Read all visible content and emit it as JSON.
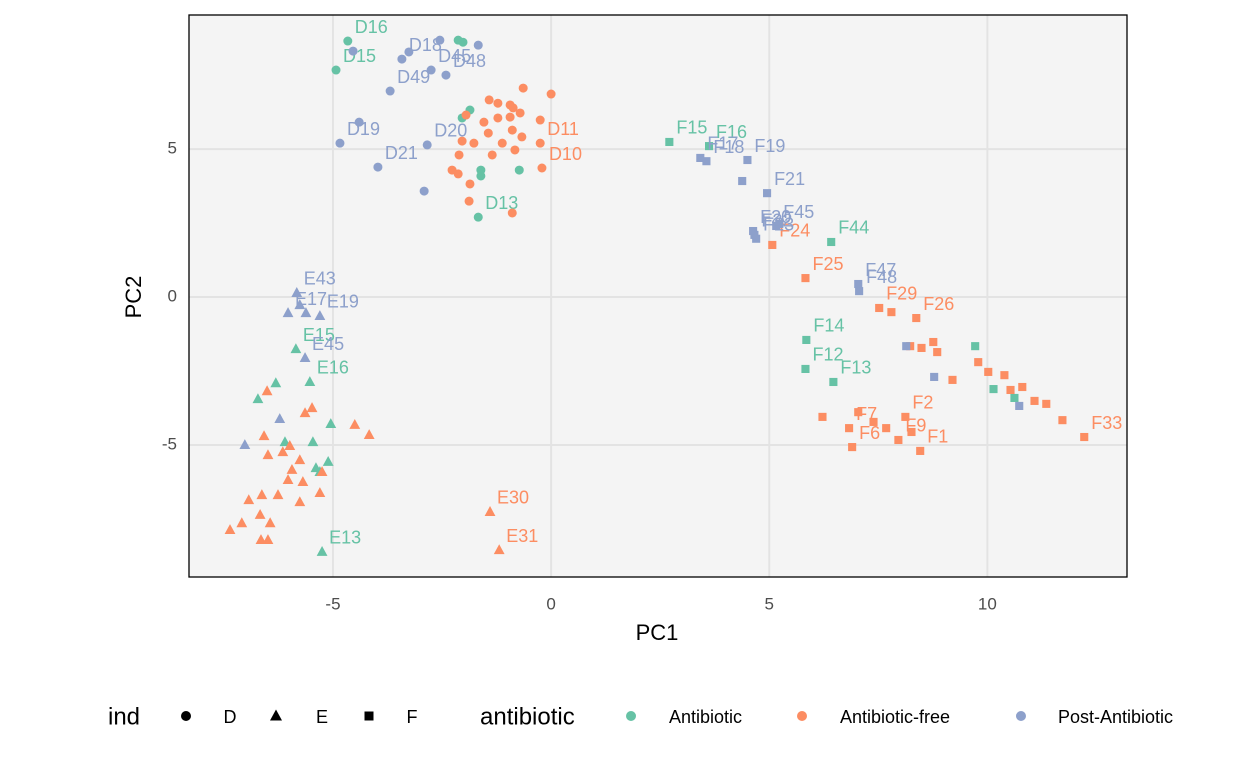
{
  "chart_data": {
    "type": "scatter",
    "xlabel": "PC1",
    "ylabel": "PC2",
    "xlim": [
      -8.3,
      13.2
    ],
    "ylim": [
      -9.46,
      9.53
    ],
    "xticks": [
      -5,
      0,
      5,
      10
    ],
    "yticks": [
      -5,
      0,
      5
    ],
    "grid": true,
    "shape_legend": {
      "title": "ind",
      "labels": [
        "D",
        "E",
        "F"
      ],
      "shapes": [
        "circle",
        "triangle",
        "square"
      ]
    },
    "legend_title": "antibiotic",
    "series": [
      {
        "name": "Antibiotic",
        "color": "#66c2a5",
        "x": [
          -4.66,
          -4.93,
          -2.13,
          -2.02,
          -1.86,
          -2.04,
          -1.61,
          -1.61,
          -0.73,
          -1.67,
          -5.85,
          -5.53,
          -6.31,
          -6.72,
          -5.05,
          -6.1,
          -5.46,
          -5.39,
          -5.3,
          -5.11,
          -5.25,
          2.71,
          3.62,
          6.42,
          5.85,
          5.83,
          6.47,
          9.72,
          10.14,
          10.62
        ],
        "y": [
          8.65,
          7.67,
          8.68,
          8.61,
          6.32,
          6.05,
          4.29,
          4.09,
          4.29,
          2.7,
          -1.76,
          -2.87,
          -2.91,
          -3.45,
          -4.29,
          -4.9,
          -4.9,
          -5.78,
          -5.91,
          -5.57,
          -8.61,
          5.24,
          5.1,
          1.86,
          -1.45,
          -2.43,
          -2.87,
          -1.66,
          -3.11,
          -3.41
        ],
        "groups": [
          "D",
          "D",
          "D",
          "D",
          "D",
          "D",
          "D",
          "D",
          "D",
          "D",
          "E",
          "E",
          "E",
          "E",
          "E",
          "E",
          "E",
          "E",
          "E",
          "E",
          "E",
          "F",
          "F",
          "F",
          "F",
          "F",
          "F",
          "F",
          "F",
          "F"
        ],
        "labels": [
          "D16",
          "D15",
          null,
          null,
          null,
          null,
          null,
          null,
          null,
          "D13",
          "E15",
          "E16",
          null,
          null,
          null,
          null,
          null,
          null,
          null,
          null,
          "E13",
          "F15",
          "F16",
          "F44",
          "F14",
          "F12",
          "F13",
          null,
          null,
          null
        ]
      },
      {
        "name": "Antibiotic-free",
        "color": "#fc8d62",
        "x": [
          0.0,
          -0.64,
          -1.42,
          -1.22,
          -0.94,
          -0.87,
          -1.95,
          -1.54,
          -1.22,
          -0.94,
          -0.71,
          -0.25,
          -1.44,
          -0.89,
          -0.67,
          -2.04,
          -1.77,
          -1.12,
          -0.25,
          -2.11,
          -1.35,
          -0.83,
          -2.27,
          -2.13,
          -1.86,
          -1.88,
          -0.89,
          -0.21,
          -6.51,
          -5.48,
          -5.64,
          -4.5,
          -4.17,
          -6.58,
          -5.99,
          -6.49,
          -6.15,
          -5.76,
          -5.94,
          -6.03,
          -5.69,
          -5.25,
          -5.3,
          -6.63,
          -6.26,
          -6.93,
          -5.76,
          -6.67,
          -7.09,
          -7.36,
          -6.49,
          -6.65,
          -6.44,
          -1.4,
          -1.19,
          5.07,
          5.83,
          7.52,
          7.8,
          8.37,
          8.23,
          8.49,
          8.76,
          8.85,
          9.2,
          9.79,
          10.02,
          10.39,
          10.53,
          10.8,
          11.08,
          11.35,
          11.72,
          12.22,
          8.12,
          6.22,
          6.83,
          7.04,
          7.39,
          7.68,
          7.96,
          8.26,
          6.9,
          8.46
        ],
        "y": [
          6.86,
          7.06,
          6.66,
          6.55,
          6.49,
          6.39,
          6.15,
          5.91,
          6.05,
          6.08,
          6.22,
          5.98,
          5.54,
          5.64,
          5.41,
          5.27,
          5.2,
          5.2,
          5.2,
          4.8,
          4.8,
          4.97,
          4.29,
          4.16,
          3.82,
          3.24,
          2.84,
          4.36,
          -3.18,
          -3.75,
          -3.92,
          -4.32,
          -4.66,
          -4.7,
          -5.03,
          -5.34,
          -5.24,
          -5.51,
          -5.84,
          -6.18,
          -6.25,
          -5.91,
          -6.62,
          -6.69,
          -6.69,
          -6.86,
          -6.93,
          -7.36,
          -7.64,
          -7.87,
          -8.21,
          -8.21,
          -7.64,
          -7.26,
          -8.55,
          1.76,
          0.64,
          -0.37,
          -0.51,
          -0.71,
          -1.66,
          -1.72,
          -1.52,
          -1.86,
          -2.8,
          -2.2,
          -2.53,
          -2.64,
          -3.14,
          -3.04,
          -3.51,
          -3.61,
          -4.16,
          -4.73,
          -4.05,
          -4.05,
          -4.43,
          -3.89,
          -4.22,
          -4.43,
          -4.83,
          -4.56,
          -5.07,
          -5.2
        ],
        "groups": [
          "D",
          "D",
          "D",
          "D",
          "D",
          "D",
          "D",
          "D",
          "D",
          "D",
          "D",
          "D",
          "D",
          "D",
          "D",
          "D",
          "D",
          "D",
          "D",
          "D",
          "D",
          "D",
          "D",
          "D",
          "D",
          "D",
          "D",
          "D",
          "E",
          "E",
          "E",
          "E",
          "E",
          "E",
          "E",
          "E",
          "E",
          "E",
          "E",
          "E",
          "E",
          "E",
          "E",
          "E",
          "E",
          "E",
          "E",
          "E",
          "E",
          "E",
          "E",
          "E",
          "E",
          "E",
          "E",
          "F",
          "F",
          "F",
          "F",
          "F",
          "F",
          "F",
          "F",
          "F",
          "F",
          "F",
          "F",
          "F",
          "F",
          "F",
          "F",
          "F",
          "F",
          "F",
          "F",
          "F",
          "F",
          "F",
          "F",
          "F",
          "F",
          "F",
          "F",
          "F"
        ],
        "labels": [
          null,
          null,
          null,
          null,
          null,
          null,
          null,
          null,
          null,
          null,
          null,
          null,
          null,
          null,
          null,
          null,
          null,
          null,
          "D11",
          null,
          null,
          null,
          null,
          null,
          null,
          null,
          null,
          "D10",
          null,
          null,
          null,
          null,
          null,
          null,
          null,
          null,
          null,
          null,
          null,
          null,
          null,
          null,
          null,
          null,
          null,
          null,
          null,
          null,
          null,
          null,
          null,
          null,
          null,
          "E30",
          "E31",
          "F24",
          "F25",
          "F29",
          null,
          "F26",
          null,
          null,
          null,
          null,
          null,
          null,
          null,
          null,
          null,
          null,
          null,
          null,
          null,
          "F33",
          "F2",
          null,
          "F7",
          null,
          null,
          null,
          "F9",
          null,
          "F6",
          "F1"
        ]
      },
      {
        "name": "Post-Antibiotic",
        "color": "#8da0cb",
        "x": [
          -4.54,
          -3.42,
          -3.26,
          -2.55,
          -1.67,
          -2.75,
          -2.41,
          -3.69,
          -4.4,
          -4.84,
          -2.84,
          -3.97,
          -2.91,
          -6.03,
          -5.83,
          -5.76,
          -5.62,
          -5.3,
          -5.64,
          -6.22,
          -7.02,
          3.42,
          3.56,
          4.5,
          4.95,
          4.38,
          5.16,
          5.23,
          4.63,
          4.66,
          4.7,
          7.04,
          7.06,
          8.14,
          8.78,
          10.73
        ],
        "y": [
          8.31,
          8.04,
          8.28,
          8.68,
          8.51,
          7.67,
          7.5,
          6.96,
          5.91,
          5.2,
          5.14,
          4.39,
          3.58,
          -0.54,
          0.14,
          -0.27,
          -0.54,
          -0.64,
          -2.06,
          -4.12,
          -5.0,
          4.7,
          4.59,
          4.63,
          3.51,
          3.92,
          2.4,
          2.47,
          2.23,
          2.1,
          1.97,
          0.44,
          0.2,
          -1.66,
          -2.7,
          -3.68
        ],
        "groups": [
          "D",
          "D",
          "D",
          "D",
          "D",
          "D",
          "D",
          "D",
          "D",
          "D",
          "D",
          "D",
          "D",
          "E",
          "E",
          "E",
          "E",
          "E",
          "E",
          "E",
          "E",
          "F",
          "F",
          "F",
          "F",
          "F",
          "F",
          "F",
          "F",
          "F",
          "F",
          "F",
          "F",
          "F",
          "F",
          "F"
        ],
        "labels": [
          null,
          "D18",
          null,
          null,
          null,
          "D45",
          "D48",
          "D49",
          null,
          "D19",
          "D20",
          "D21",
          null,
          "E17",
          "E43",
          null,
          null,
          "E19",
          "E45",
          null,
          null,
          "F17",
          "F18",
          "F19",
          "F21",
          null,
          "F45",
          null,
          "F20",
          "F22",
          "F23",
          "F47",
          "F48",
          null,
          null,
          null
        ]
      }
    ]
  }
}
